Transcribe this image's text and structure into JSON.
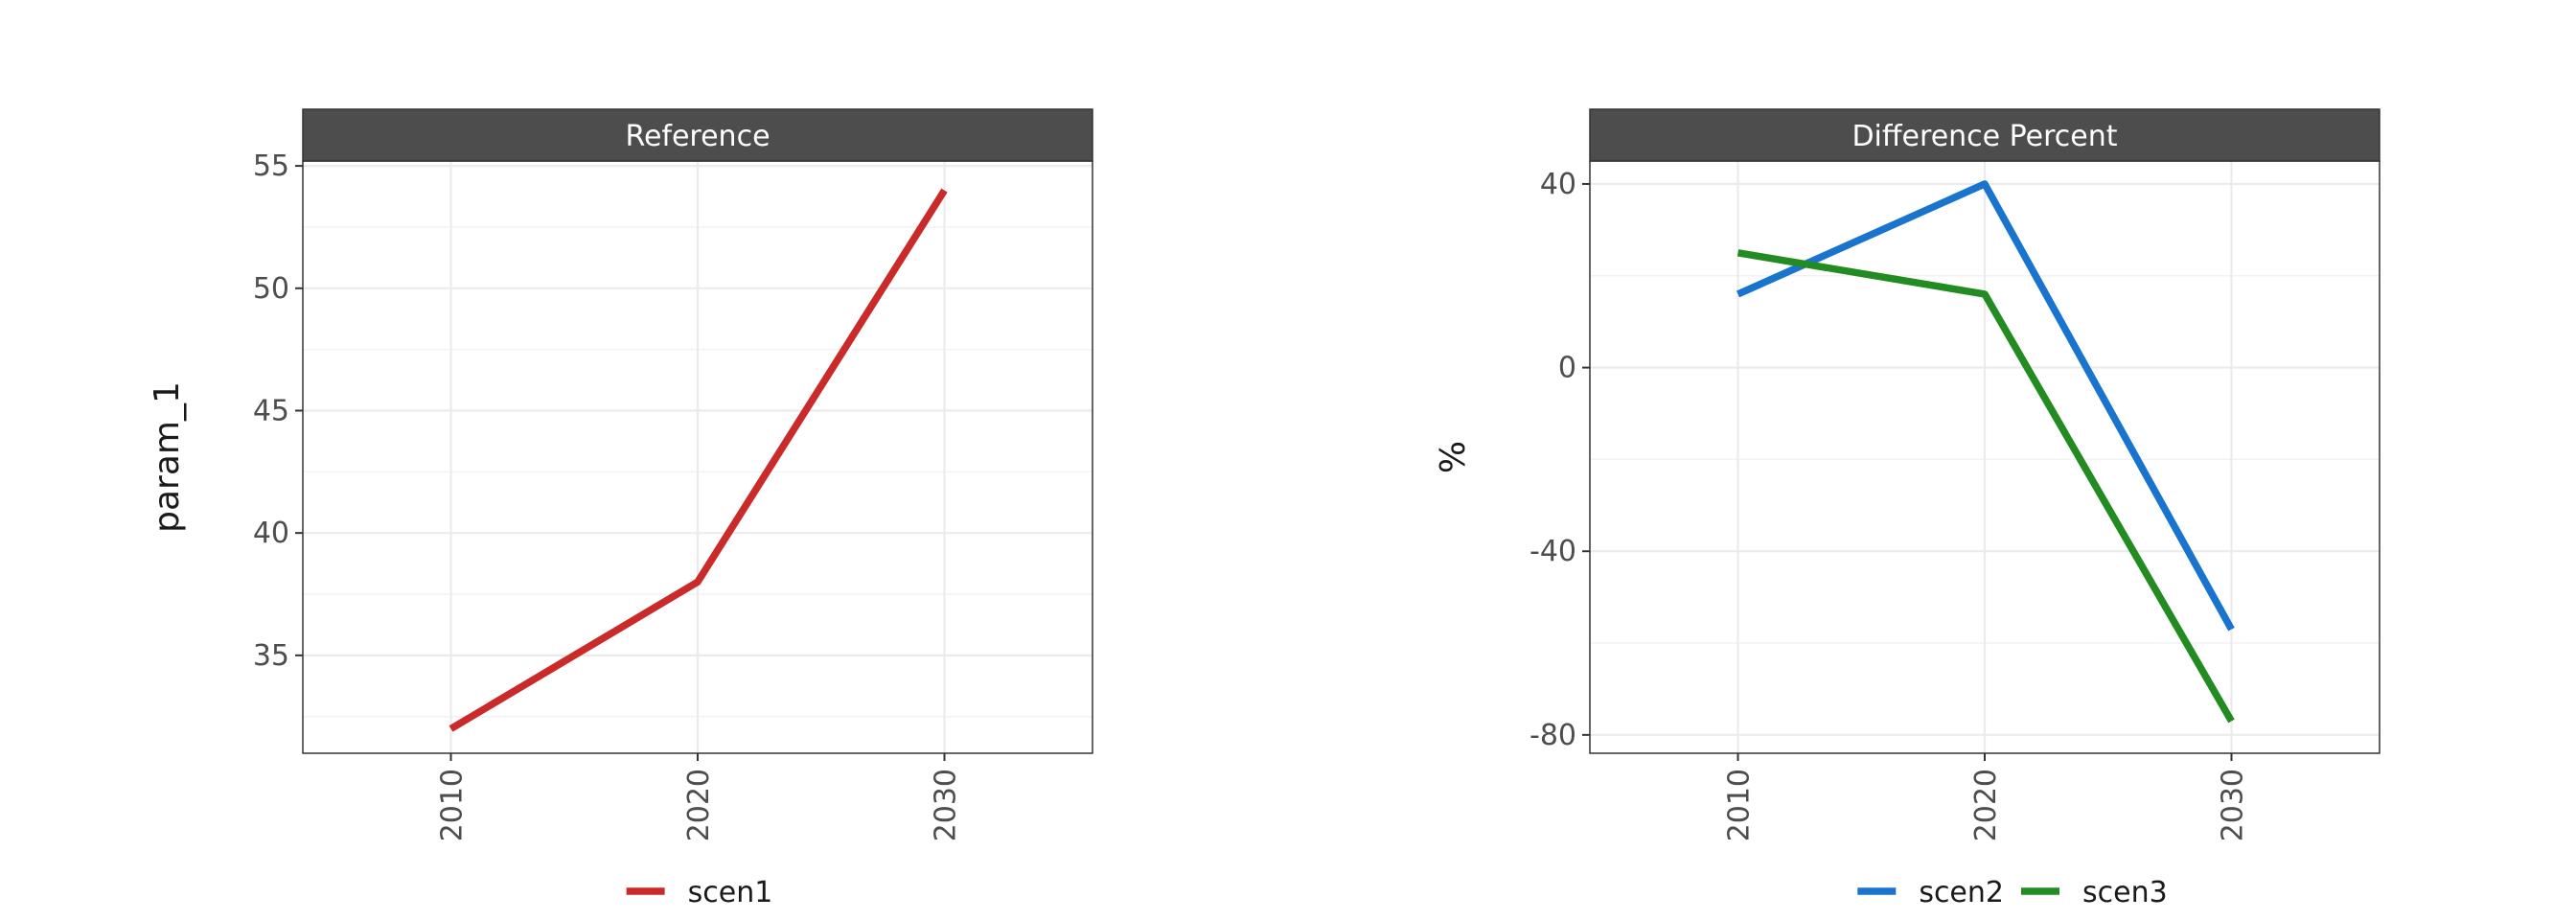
{
  "chart_data": [
    {
      "type": "line",
      "title": "Reference",
      "ylabel": "param_1",
      "xlabel": "",
      "x": [
        2010,
        2020,
        2030
      ],
      "xticks": [
        "2010",
        "2020",
        "2030"
      ],
      "yticks": [
        35,
        40,
        45,
        50,
        55
      ],
      "ytick_labels": [
        "35",
        "40",
        "45",
        "50",
        "55"
      ],
      "xlim": [
        2004,
        2036
      ],
      "ylim": [
        31,
        55.2
      ],
      "grid": true,
      "legend_position": "bottom",
      "series": [
        {
          "name": "scen1",
          "values": [
            32,
            38,
            54
          ],
          "color": "#CB2A2A"
        }
      ]
    },
    {
      "type": "line",
      "title": "Difference Percent",
      "ylabel": "%",
      "xlabel": "",
      "x": [
        2010,
        2020,
        2030
      ],
      "xticks": [
        "2010",
        "2020",
        "2030"
      ],
      "yticks": [
        -80,
        -40,
        0,
        40
      ],
      "ytick_labels": [
        "-80",
        "-40",
        "0",
        "40"
      ],
      "xlim": [
        2004,
        2036
      ],
      "ylim": [
        -84,
        45
      ],
      "grid": true,
      "legend_position": "bottom",
      "series": [
        {
          "name": "scen2",
          "values": [
            16,
            40,
            -57
          ],
          "color": "#1874CD"
        },
        {
          "name": "scen3",
          "values": [
            25,
            16,
            -77
          ],
          "color": "#228B22"
        }
      ]
    }
  ]
}
